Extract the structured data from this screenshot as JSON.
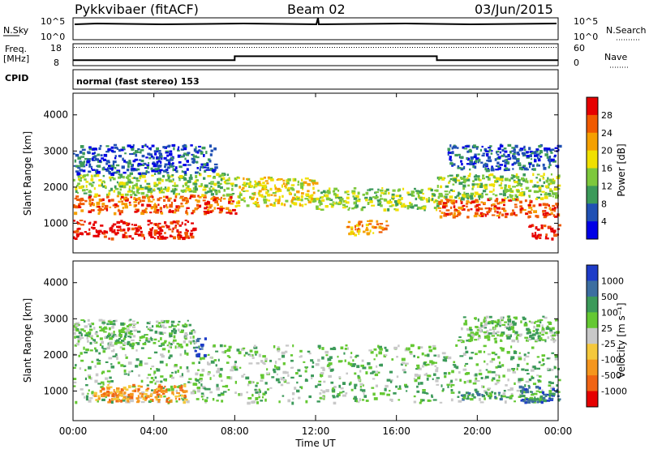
{
  "header": {
    "station": "Pykkvibaer (fitACF)",
    "beam": "Beam 02",
    "date": "03/Jun/2015"
  },
  "panels": {
    "nsky_label": "N.Sky",
    "nsky_ticks": [
      "10^5",
      "10^0"
    ],
    "nsearch_label": "N.Search",
    "nsearch_ticks": [
      "10^5",
      "10^0"
    ],
    "freq_label_top": "Freq.",
    "freq_label_bot": "[MHz]",
    "freq_ticks": [
      "18",
      "8"
    ],
    "nave_label": "Nave",
    "nave_ticks": [
      "60",
      "0"
    ],
    "cpid_label": "CPID",
    "cpid_text": "normal (fast stereo) 153"
  },
  "chart_data": [
    {
      "type": "heatmap",
      "name": "power",
      "ylabel": "Slant Range [km]",
      "yticks": [
        1000,
        2000,
        3000,
        4000
      ],
      "ylim": [
        180,
        4600
      ],
      "xlim": [
        0,
        24
      ],
      "colorbar": {
        "label": "Power [dB]",
        "ticks": [
          "28",
          "24",
          "20",
          "16",
          "12",
          "8",
          "4"
        ],
        "colors": [
          "#e60000",
          "#f05a00",
          "#f5a000",
          "#f0e000",
          "#7dc83c",
          "#3c9a5a",
          "#2050b4",
          "#0000e6"
        ]
      },
      "echo_bands": [
        {
          "t0": 0.0,
          "t1": 6.0,
          "r0": 600,
          "r1": 1100,
          "level": "28"
        },
        {
          "t0": 0.0,
          "t1": 8.0,
          "r0": 1300,
          "r1": 1800,
          "level": "24"
        },
        {
          "t0": 0.0,
          "t1": 8.0,
          "r0": 1800,
          "r1": 2400,
          "level": "12"
        },
        {
          "t0": 0.0,
          "t1": 7.0,
          "r0": 2400,
          "r1": 3200,
          "level": "4"
        },
        {
          "t0": 8.0,
          "t1": 12.0,
          "r0": 1500,
          "r1": 2300,
          "level": "16"
        },
        {
          "t0": 12.0,
          "t1": 18.0,
          "r0": 1400,
          "r1": 2000,
          "level": "12"
        },
        {
          "t0": 18.0,
          "t1": 24.0,
          "r0": 1200,
          "r1": 1700,
          "level": "24"
        },
        {
          "t0": 18.0,
          "t1": 24.0,
          "r0": 1700,
          "r1": 2400,
          "level": "12"
        },
        {
          "t0": 18.5,
          "t1": 24.0,
          "r0": 2500,
          "r1": 3200,
          "level": "4"
        },
        {
          "t0": 13.5,
          "t1": 15.5,
          "r0": 700,
          "r1": 1100,
          "level": "20"
        },
        {
          "t0": 22.5,
          "t1": 24.0,
          "r0": 600,
          "r1": 1000,
          "level": "28"
        }
      ]
    },
    {
      "type": "heatmap",
      "name": "velocity",
      "xlabel": "Time UT",
      "ylabel": "Slant Range [km]",
      "yticks": [
        1000,
        2000,
        3000,
        4000
      ],
      "ylim": [
        180,
        4600
      ],
      "xlim": [
        0,
        24
      ],
      "xticks": [
        "00:00",
        "04:00",
        "08:00",
        "12:00",
        "16:00",
        "20:00",
        "00:00"
      ],
      "colorbar": {
        "label": "Velocity [m s⁻¹]",
        "ticks": [
          "1000",
          "500",
          "100",
          "25",
          "-25",
          "-100",
          "-500",
          "-1000"
        ],
        "colors": [
          "#1e3cc8",
          "#3c6ea0",
          "#3c9a5a",
          "#64c832",
          "#c8c8c8",
          "#f5c83c",
          "#f5961e",
          "#f06414",
          "#e60000"
        ]
      },
      "echo_bands": [
        {
          "t0": 0.0,
          "t1": 24.0,
          "r0": 700,
          "r1": 2300,
          "level": "25"
        },
        {
          "t0": 1.0,
          "t1": 5.5,
          "r0": 700,
          "r1": 1200,
          "level": "-500"
        },
        {
          "t0": 0.0,
          "t1": 6.0,
          "r0": 2300,
          "r1": 3000,
          "level": "25"
        },
        {
          "t0": 19.0,
          "t1": 24.0,
          "r0": 2400,
          "r1": 3100,
          "level": "25"
        },
        {
          "t0": 19.0,
          "t1": 21.5,
          "r0": 800,
          "r1": 1000,
          "level": "100"
        },
        {
          "t0": 22.0,
          "t1": 24.0,
          "r0": 700,
          "r1": 1200,
          "level": "500"
        },
        {
          "t0": 6.0,
          "t1": 6.5,
          "r0": 2000,
          "r1": 2500,
          "level": "1000"
        }
      ]
    }
  ],
  "series_panels": {
    "freq_steps": [
      {
        "t0": 0.0,
        "t1": 8.0,
        "value": 10.5
      },
      {
        "t0": 8.0,
        "t1": 18.0,
        "value": 12.3
      },
      {
        "t0": 18.0,
        "t1": 24.0,
        "value": 10.5
      }
    ],
    "freq_ylim": [
      8,
      18
    ],
    "nave_dotted": 50,
    "nave_ylim": [
      0,
      60
    ]
  }
}
